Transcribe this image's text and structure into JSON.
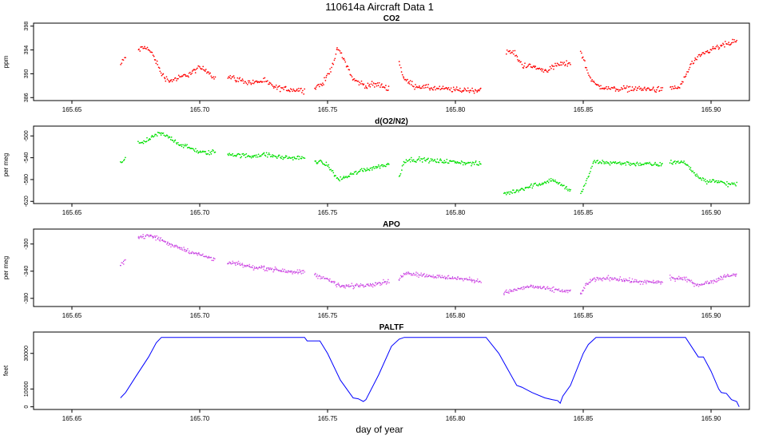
{
  "figure": {
    "title": "110614a   Aircraft Data 1",
    "xlabel": "day of year"
  },
  "chart_data": [
    {
      "type": "scatter",
      "title": "CO2",
      "ylabel": "ppm",
      "xlim": [
        165.635,
        165.915
      ],
      "ylim": [
        385.5,
        398.5
      ],
      "xticks": [
        165.65,
        165.7,
        165.75,
        165.8,
        165.85,
        165.9
      ],
      "xtick_labels": [
        "165.65",
        "165.70",
        "165.75",
        "165.80",
        "165.85",
        "165.90"
      ],
      "yticks": [
        386,
        390,
        394,
        398
      ],
      "color": "#ff0000",
      "noise": 0.7,
      "segments": [
        [
          [
            165.669,
            391.5
          ],
          [
            165.671,
            392.8
          ]
        ],
        [
          [
            165.676,
            394.0
          ],
          [
            165.679,
            394.5
          ],
          [
            165.682,
            393.0
          ],
          [
            165.685,
            390.0
          ],
          [
            165.688,
            388.8
          ],
          [
            165.692,
            389.3
          ],
          [
            165.696,
            390.0
          ],
          [
            165.7,
            391.0
          ],
          [
            165.703,
            390.5
          ],
          [
            165.706,
            389.2
          ]
        ],
        [
          [
            165.711,
            389.6
          ],
          [
            165.715,
            389.0
          ],
          [
            165.72,
            388.5
          ],
          [
            165.725,
            388.8
          ],
          [
            165.73,
            387.6
          ],
          [
            165.735,
            387.4
          ],
          [
            165.741,
            387.2
          ]
        ],
        [
          [
            165.745,
            387.8
          ],
          [
            165.748,
            388.2
          ],
          [
            165.751,
            390.5
          ],
          [
            165.754,
            394.2
          ],
          [
            165.757,
            392.0
          ],
          [
            165.76,
            389.0
          ],
          [
            165.765,
            388.0
          ],
          [
            165.77,
            388.2
          ],
          [
            165.774,
            387.5
          ]
        ],
        [
          [
            165.778,
            392.0
          ],
          [
            165.78,
            389.0
          ],
          [
            165.784,
            388.0
          ],
          [
            165.79,
            387.6
          ],
          [
            165.8,
            387.3
          ],
          [
            165.81,
            387.2
          ]
        ],
        [
          [
            165.82,
            393.8
          ],
          [
            165.823,
            393.5
          ],
          [
            165.826,
            391.5
          ],
          [
            165.83,
            391.2
          ],
          [
            165.835,
            390.5
          ],
          [
            165.84,
            391.5
          ],
          [
            165.845,
            391.8
          ]
        ],
        [
          [
            165.849,
            393.8
          ],
          [
            165.852,
            390.0
          ],
          [
            165.855,
            388.0
          ],
          [
            165.86,
            387.5
          ],
          [
            165.87,
            387.5
          ],
          [
            165.881,
            387.3
          ]
        ],
        [
          [
            165.884,
            387.5
          ],
          [
            165.888,
            387.8
          ],
          [
            165.892,
            391.5
          ],
          [
            165.896,
            393.0
          ],
          [
            165.9,
            394.0
          ],
          [
            165.905,
            394.8
          ],
          [
            165.91,
            395.5
          ]
        ]
      ]
    },
    {
      "type": "scatter",
      "title": "d(O2/N2)",
      "ylabel": "per meg",
      "xlim": [
        165.635,
        165.915
      ],
      "ylim": [
        -624,
        -482
      ],
      "xticks": [
        165.65,
        165.7,
        165.75,
        165.8,
        165.85,
        165.9
      ],
      "xtick_labels": [
        "165.65",
        "165.70",
        "165.75",
        "165.80",
        "165.85",
        "165.90"
      ],
      "yticks": [
        -500,
        -540,
        -580,
        -620
      ],
      "color": "#00e000",
      "noise": 6,
      "segments": [
        [
          [
            165.669,
            -550
          ],
          [
            165.671,
            -544
          ]
        ],
        [
          [
            165.676,
            -512
          ],
          [
            165.68,
            -508
          ],
          [
            165.684,
            -495
          ],
          [
            165.688,
            -502
          ],
          [
            165.692,
            -515
          ],
          [
            165.696,
            -522
          ],
          [
            165.7,
            -530
          ],
          [
            165.704,
            -531
          ],
          [
            165.706,
            -528
          ]
        ],
        [
          [
            165.711,
            -533
          ],
          [
            165.716,
            -536
          ],
          [
            165.72,
            -537
          ],
          [
            165.725,
            -534
          ],
          [
            165.73,
            -538
          ],
          [
            165.735,
            -540
          ],
          [
            165.741,
            -541
          ]
        ],
        [
          [
            165.745,
            -545
          ],
          [
            165.75,
            -553
          ],
          [
            165.754,
            -580
          ],
          [
            165.758,
            -574
          ],
          [
            165.762,
            -565
          ],
          [
            165.768,
            -558
          ],
          [
            165.774,
            -552
          ]
        ],
        [
          [
            165.778,
            -576
          ],
          [
            165.78,
            -545
          ],
          [
            165.785,
            -543
          ],
          [
            165.79,
            -545
          ],
          [
            165.8,
            -548
          ],
          [
            165.81,
            -552
          ]
        ],
        [
          [
            165.819,
            -606
          ],
          [
            165.823,
            -602
          ],
          [
            165.828,
            -594
          ],
          [
            165.833,
            -588
          ],
          [
            165.838,
            -580
          ],
          [
            165.842,
            -592
          ],
          [
            165.845,
            -600
          ]
        ],
        [
          [
            165.849,
            -605
          ],
          [
            165.851,
            -588
          ],
          [
            165.854,
            -548
          ],
          [
            165.86,
            -549
          ],
          [
            165.87,
            -551
          ],
          [
            165.881,
            -553
          ]
        ],
        [
          [
            165.884,
            -548
          ],
          [
            165.89,
            -549
          ],
          [
            165.894,
            -572
          ],
          [
            165.898,
            -583
          ],
          [
            165.902,
            -582
          ],
          [
            165.906,
            -588
          ],
          [
            165.91,
            -590
          ]
        ]
      ]
    },
    {
      "type": "scatter",
      "title": "APO",
      "ylabel": "per meg",
      "xlim": [
        165.635,
        165.915
      ],
      "ylim": [
        -392,
        -278
      ],
      "xticks": [
        165.65,
        165.7,
        165.75,
        165.8,
        165.85,
        165.9
      ],
      "xtick_labels": [
        "165.65",
        "165.70",
        "165.75",
        "165.80",
        "165.85",
        "165.90"
      ],
      "yticks": [
        -300,
        -340,
        -380
      ],
      "color": "#e060e8",
      "dark_color": "#8a2bd6",
      "noise": 5,
      "segments": [
        [
          [
            165.669,
            -330
          ],
          [
            165.671,
            -322
          ]
        ],
        [
          [
            165.676,
            -290
          ],
          [
            165.68,
            -288
          ],
          [
            165.684,
            -292
          ],
          [
            165.688,
            -300
          ],
          [
            165.692,
            -305
          ],
          [
            165.696,
            -311
          ],
          [
            165.7,
            -316
          ],
          [
            165.704,
            -320
          ],
          [
            165.706,
            -322
          ]
        ],
        [
          [
            165.711,
            -328
          ],
          [
            165.716,
            -330
          ],
          [
            165.72,
            -334
          ],
          [
            165.725,
            -335
          ],
          [
            165.73,
            -338
          ],
          [
            165.735,
            -340
          ],
          [
            165.741,
            -342
          ]
        ],
        [
          [
            165.745,
            -345
          ],
          [
            165.75,
            -352
          ],
          [
            165.755,
            -362
          ],
          [
            165.76,
            -362
          ],
          [
            165.766,
            -360
          ],
          [
            165.774,
            -355
          ]
        ],
        [
          [
            165.778,
            -352
          ],
          [
            165.78,
            -342
          ],
          [
            165.786,
            -345
          ],
          [
            165.792,
            -348
          ],
          [
            165.8,
            -350
          ],
          [
            165.81,
            -355
          ]
        ],
        [
          [
            165.819,
            -372
          ],
          [
            165.825,
            -366
          ],
          [
            165.83,
            -362
          ],
          [
            165.835,
            -366
          ],
          [
            165.84,
            -368
          ],
          [
            165.845,
            -370
          ]
        ],
        [
          [
            165.849,
            -374
          ],
          [
            165.851,
            -360
          ],
          [
            165.854,
            -352
          ],
          [
            165.86,
            -350
          ],
          [
            165.866,
            -353
          ],
          [
            165.872,
            -356
          ],
          [
            165.881,
            -357
          ]
        ],
        [
          [
            165.884,
            -350
          ],
          [
            165.89,
            -352
          ],
          [
            165.895,
            -360
          ],
          [
            165.9,
            -356
          ],
          [
            165.905,
            -348
          ],
          [
            165.91,
            -345
          ]
        ]
      ]
    },
    {
      "type": "line",
      "title": "PALTF",
      "ylabel": "feet",
      "xlim": [
        165.635,
        165.915
      ],
      "ylim": [
        -1500,
        42000
      ],
      "xticks": [
        165.65,
        165.7,
        165.75,
        165.8,
        165.85,
        165.9
      ],
      "xtick_labels": [
        "165.65",
        "165.70",
        "165.75",
        "165.80",
        "165.85",
        "165.90"
      ],
      "yticks": [
        0,
        10000,
        30000
      ],
      "color": "#0000ff",
      "x": [
        165.669,
        165.671,
        165.675,
        165.68,
        165.683,
        165.685,
        165.7,
        165.72,
        165.741,
        165.742,
        165.745,
        165.747,
        165.75,
        165.755,
        165.76,
        165.762,
        165.764,
        165.765,
        165.77,
        165.775,
        165.778,
        165.78,
        165.812,
        165.817,
        165.824,
        165.826,
        165.83,
        165.835,
        165.838,
        165.84,
        165.841,
        165.842,
        165.845,
        165.85,
        165.852,
        165.855,
        165.89,
        165.895,
        165.897,
        165.9,
        165.903,
        165.904,
        165.906,
        165.908,
        165.91,
        165.911
      ],
      "y": [
        5000,
        8000,
        17000,
        28000,
        36000,
        39000,
        39000,
        39000,
        39000,
        37000,
        37000,
        37000,
        30000,
        15000,
        5000,
        4500,
        3000,
        4000,
        18000,
        34000,
        38000,
        39000,
        39000,
        30000,
        12000,
        11000,
        8000,
        5000,
        4000,
        3500,
        2000,
        6000,
        12000,
        30000,
        35000,
        39000,
        39000,
        28000,
        28000,
        20000,
        10000,
        8000,
        7500,
        4000,
        3000,
        0
      ]
    }
  ]
}
